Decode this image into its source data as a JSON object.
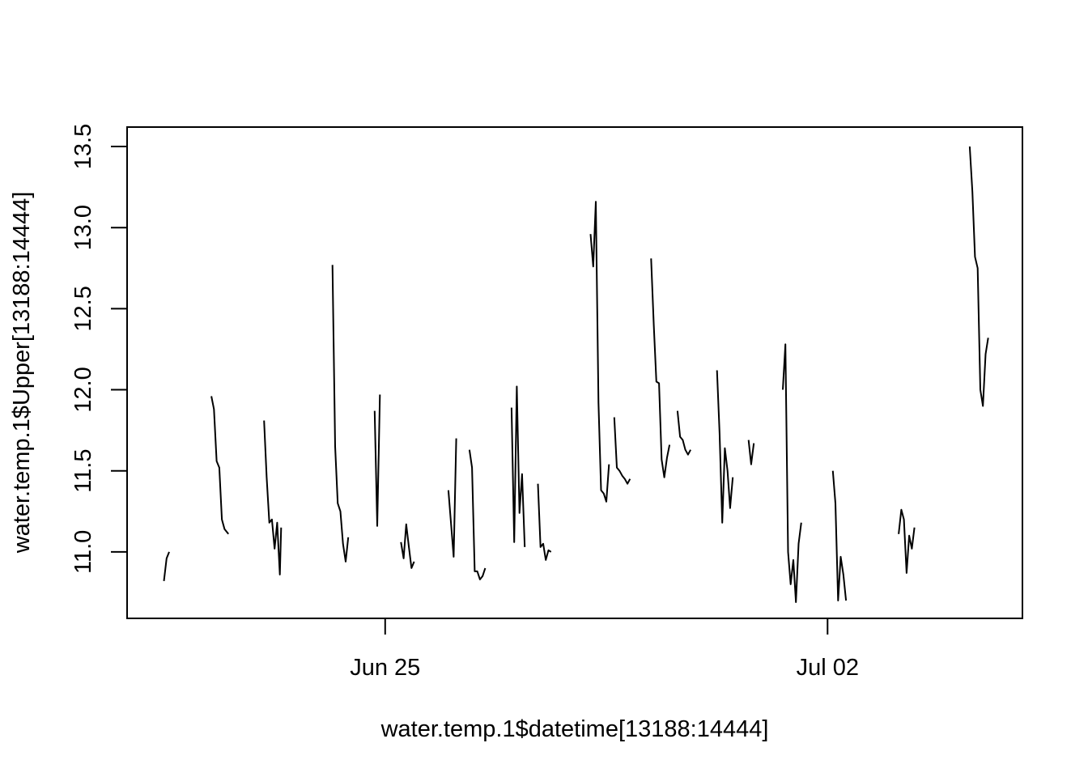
{
  "chart_data": {
    "type": "line",
    "title": "",
    "xlabel": "water.temp.1$datetime[13188:14444]",
    "ylabel": "water.temp.1$Upper[13188:14444]",
    "x_ticks": [
      {
        "label": "Jun 25",
        "value": "2023-06-25"
      },
      {
        "label": "Jul 02",
        "value": "2023-07-02"
      }
    ],
    "y_ticks": [
      "11.0",
      "11.5",
      "12.0",
      "12.5",
      "13.0",
      "13.5"
    ],
    "xlim": [
      "2023-06-20T22:00",
      "2023-07-05T02:00"
    ],
    "ylim": [
      10.59,
      13.62
    ],
    "grid": false,
    "line_color": "#000000",
    "series": [
      {
        "segments": [
          [
            [
              "2023-06-21T12:00",
              10.82
            ],
            [
              "2023-06-21T13:00",
              10.96
            ],
            [
              "2023-06-21T14:00",
              11.0
            ]
          ],
          [
            [
              "2023-06-22T06:00",
              11.96
            ],
            [
              "2023-06-22T07:00",
              11.88
            ],
            [
              "2023-06-22T08:00",
              11.56
            ],
            [
              "2023-06-22T09:00",
              11.52
            ],
            [
              "2023-06-22T10:00",
              11.2
            ],
            [
              "2023-06-22T11:00",
              11.14
            ],
            [
              "2023-06-22T12:00",
              11.12
            ],
            [
              "2023-06-22T12:30",
              11.11
            ]
          ],
          [
            [
              "2023-06-23T02:00",
              11.81
            ],
            [
              "2023-06-23T03:00",
              11.46
            ],
            [
              "2023-06-23T04:00",
              11.18
            ],
            [
              "2023-06-23T05:00",
              11.2
            ],
            [
              "2023-06-23T06:00",
              11.02
            ],
            [
              "2023-06-23T07:00",
              11.18
            ],
            [
              "2023-06-23T08:00",
              10.86
            ],
            [
              "2023-06-23T08:30",
              11.15
            ]
          ],
          [
            [
              "2023-06-24T04:00",
              12.77
            ],
            [
              "2023-06-24T05:00",
              11.65
            ],
            [
              "2023-06-24T06:00",
              11.3
            ],
            [
              "2023-06-24T07:00",
              11.25
            ],
            [
              "2023-06-24T08:00",
              11.05
            ],
            [
              "2023-06-24T09:00",
              10.94
            ],
            [
              "2023-06-24T10:00",
              11.09
            ]
          ],
          [
            [
              "2023-06-24T20:00",
              11.87
            ],
            [
              "2023-06-24T21:00",
              11.16
            ],
            [
              "2023-06-24T22:00",
              11.97
            ]
          ],
          [
            [
              "2023-06-25T06:00",
              11.06
            ],
            [
              "2023-06-25T07:00",
              10.96
            ],
            [
              "2023-06-25T08:00",
              11.17
            ],
            [
              "2023-06-25T09:00",
              11.03
            ],
            [
              "2023-06-25T10:00",
              10.9
            ],
            [
              "2023-06-25T11:00",
              10.94
            ]
          ],
          [
            [
              "2023-06-26T00:00",
              11.38
            ],
            [
              "2023-06-26T02:00",
              10.97
            ],
            [
              "2023-06-26T03:00",
              11.7
            ]
          ],
          [
            [
              "2023-06-26T08:00",
              11.63
            ],
            [
              "2023-06-26T09:00",
              11.52
            ],
            [
              "2023-06-26T10:00",
              10.88
            ],
            [
              "2023-06-26T11:00",
              10.88
            ],
            [
              "2023-06-26T12:00",
              10.83
            ],
            [
              "2023-06-26T13:00",
              10.85
            ],
            [
              "2023-06-26T14:00",
              10.9
            ]
          ],
          [
            [
              "2023-06-27T00:00",
              11.89
            ],
            [
              "2023-06-27T01:00",
              11.06
            ],
            [
              "2023-06-27T02:00",
              12.02
            ],
            [
              "2023-06-27T03:00",
              11.24
            ],
            [
              "2023-06-27T04:00",
              11.48
            ],
            [
              "2023-06-27T05:00",
              11.03
            ]
          ],
          [
            [
              "2023-06-27T10:00",
              11.42
            ],
            [
              "2023-06-27T11:00",
              11.03
            ],
            [
              "2023-06-27T12:00",
              11.05
            ],
            [
              "2023-06-27T13:00",
              10.95
            ],
            [
              "2023-06-27T14:00",
              11.01
            ],
            [
              "2023-06-27T15:00",
              11.0
            ]
          ],
          [
            [
              "2023-06-28T06:00",
              12.96
            ],
            [
              "2023-06-28T07:00",
              12.76
            ],
            [
              "2023-06-28T08:00",
              13.16
            ],
            [
              "2023-06-28T09:00",
              11.92
            ],
            [
              "2023-06-28T10:00",
              11.38
            ],
            [
              "2023-06-28T11:00",
              11.36
            ],
            [
              "2023-06-28T12:00",
              11.31
            ],
            [
              "2023-06-28T13:00",
              11.54
            ]
          ],
          [
            [
              "2023-06-28T15:00",
              11.83
            ],
            [
              "2023-06-28T16:00",
              11.52
            ],
            [
              "2023-06-28T17:00",
              11.5
            ],
            [
              "2023-06-28T18:00",
              11.47
            ],
            [
              "2023-06-28T19:00",
              11.45
            ],
            [
              "2023-06-28T20:00",
              11.42
            ],
            [
              "2023-06-28T21:00",
              11.45
            ]
          ],
          [
            [
              "2023-06-29T05:00",
              12.81
            ],
            [
              "2023-06-29T06:00",
              12.4
            ],
            [
              "2023-06-29T07:00",
              12.05
            ],
            [
              "2023-06-29T08:00",
              12.04
            ],
            [
              "2023-06-29T09:00",
              11.57
            ],
            [
              "2023-06-29T10:00",
              11.46
            ],
            [
              "2023-06-29T11:00",
              11.58
            ],
            [
              "2023-06-29T12:00",
              11.66
            ]
          ],
          [
            [
              "2023-06-29T15:00",
              11.87
            ],
            [
              "2023-06-29T16:00",
              11.71
            ],
            [
              "2023-06-29T17:00",
              11.69
            ],
            [
              "2023-06-29T18:00",
              11.63
            ],
            [
              "2023-06-29T19:00",
              11.6
            ],
            [
              "2023-06-29T20:00",
              11.63
            ]
          ],
          [
            [
              "2023-06-30T06:00",
              12.12
            ],
            [
              "2023-06-30T07:00",
              11.73
            ],
            [
              "2023-06-30T08:00",
              11.18
            ],
            [
              "2023-06-30T09:00",
              11.64
            ],
            [
              "2023-06-30T10:00",
              11.5
            ],
            [
              "2023-06-30T11:00",
              11.27
            ],
            [
              "2023-06-30T12:00",
              11.46
            ]
          ],
          [
            [
              "2023-06-30T18:00",
              11.69
            ],
            [
              "2023-06-30T19:00",
              11.54
            ],
            [
              "2023-06-30T20:00",
              11.67
            ]
          ],
          [
            [
              "2023-07-01T07:00",
              12.0
            ],
            [
              "2023-07-01T08:00",
              12.28
            ],
            [
              "2023-07-01T09:00",
              11.0
            ],
            [
              "2023-07-01T10:00",
              10.8
            ],
            [
              "2023-07-01T11:00",
              10.95
            ],
            [
              "2023-07-01T12:00",
              10.69
            ],
            [
              "2023-07-01T13:00",
              11.05
            ],
            [
              "2023-07-01T14:00",
              11.18
            ]
          ],
          [
            [
              "2023-07-02T02:00",
              11.5
            ],
            [
              "2023-07-02T03:00",
              11.3
            ],
            [
              "2023-07-02T04:00",
              10.7
            ],
            [
              "2023-07-02T05:00",
              10.97
            ],
            [
              "2023-07-02T06:00",
              10.86
            ],
            [
              "2023-07-02T07:00",
              10.7
            ]
          ],
          [
            [
              "2023-07-03T03:00",
              11.11
            ],
            [
              "2023-07-03T04:00",
              11.26
            ],
            [
              "2023-07-03T05:00",
              11.2
            ],
            [
              "2023-07-03T06:00",
              10.87
            ],
            [
              "2023-07-03T07:00",
              11.1
            ],
            [
              "2023-07-03T08:00",
              11.02
            ],
            [
              "2023-07-03T09:00",
              11.15
            ]
          ],
          [
            [
              "2023-07-04T06:00",
              13.5
            ],
            [
              "2023-07-04T07:00",
              13.22
            ],
            [
              "2023-07-04T08:00",
              12.82
            ],
            [
              "2023-07-04T09:00",
              12.75
            ],
            [
              "2023-07-04T10:00",
              12.0
            ],
            [
              "2023-07-04T11:00",
              11.9
            ],
            [
              "2023-07-04T12:00",
              12.22
            ],
            [
              "2023-07-04T13:00",
              12.32
            ]
          ]
        ]
      }
    ]
  }
}
